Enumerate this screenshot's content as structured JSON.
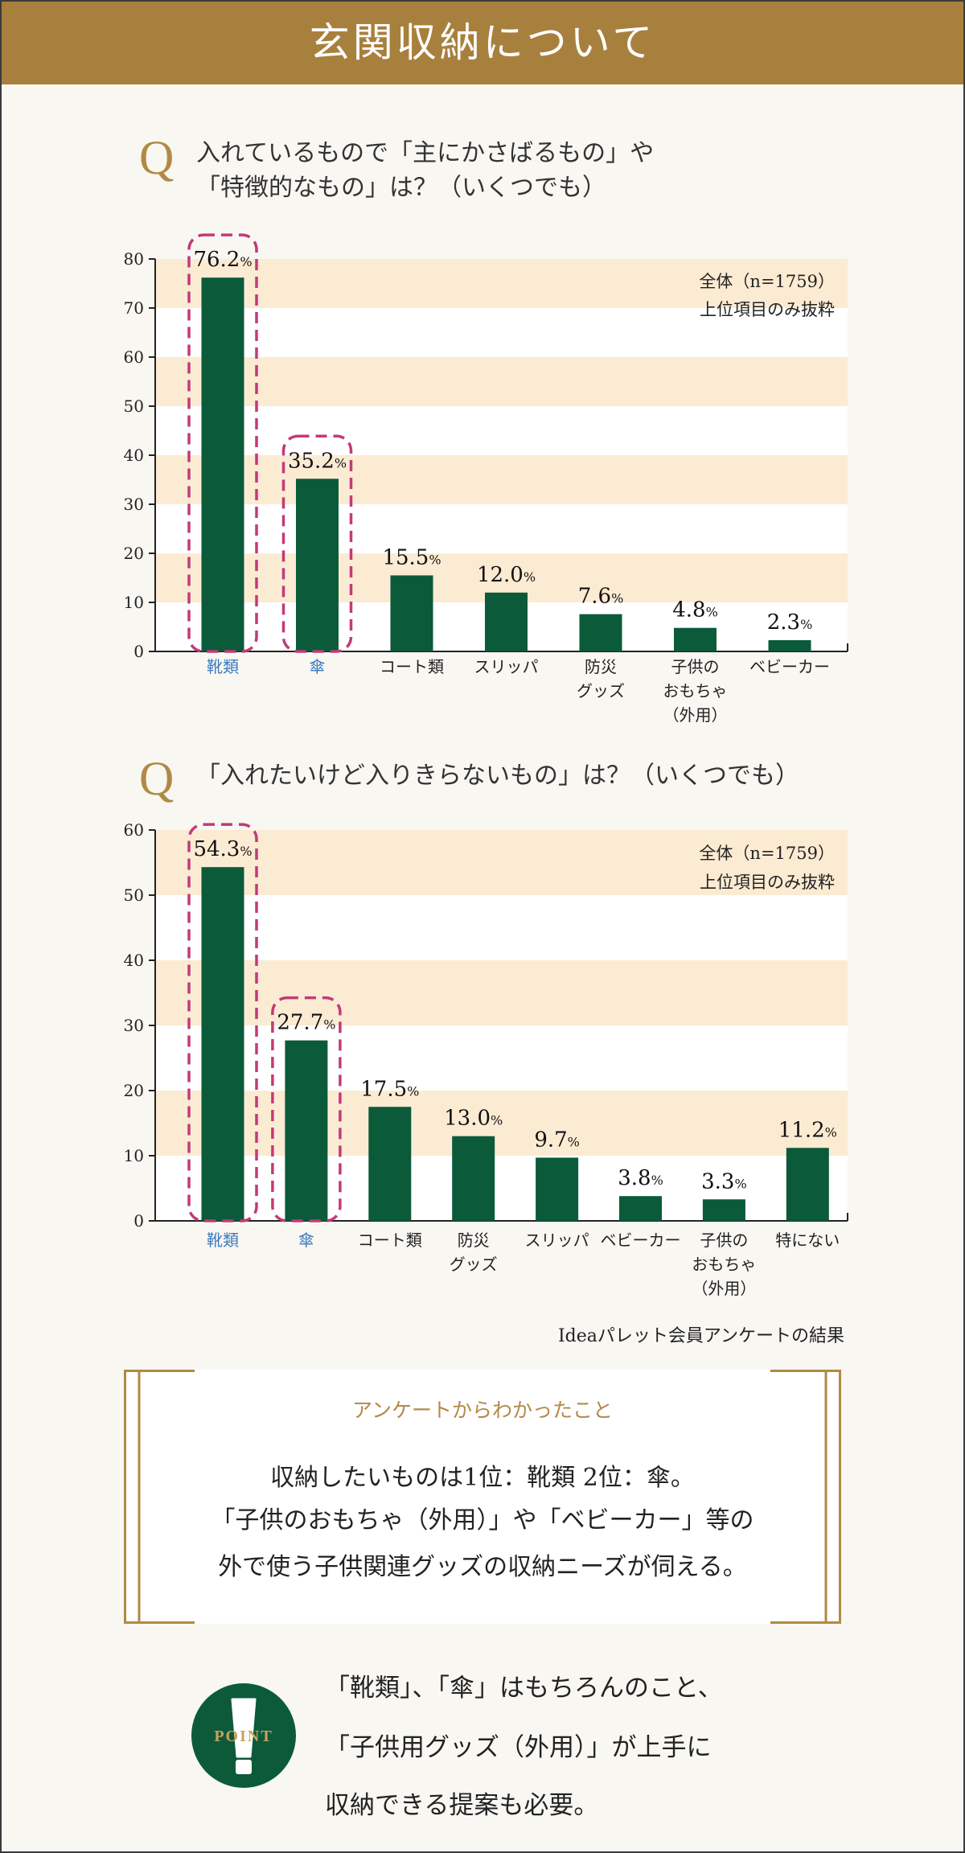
{
  "header": {
    "title": "玄関収納について"
  },
  "questions": [
    {
      "marker": "Q",
      "lines": [
        "入れているもので「主にかさばるもの」や",
        "「特徴的なもの」は？（いくつでも）"
      ]
    },
    {
      "marker": "Q",
      "lines": [
        "「入れたいけど入りきらないもの」は？（いくつでも）"
      ]
    }
  ],
  "colors": {
    "header": "#a8803d",
    "bar": "#0b5a3a",
    "band": "#fcebd3",
    "plot_background": "#ffffff",
    "highlight_label": "#3b7bbf",
    "highlight_box": "#c33a78",
    "gold": "#b08a45"
  },
  "chart_data": [
    {
      "type": "bar",
      "categories": [
        "靴類",
        "傘",
        "コート類",
        "スリッパ",
        "防災\nグッズ",
        "子供の\nおもちゃ\n（外用）",
        "ベビーカー"
      ],
      "values": [
        76.2,
        35.2,
        15.5,
        12.0,
        7.6,
        4.8,
        2.3
      ],
      "unit": "%",
      "ylim": [
        0,
        80
      ],
      "yticks": [
        0,
        10,
        20,
        30,
        40,
        50,
        60,
        70,
        80
      ],
      "highlight": [
        0,
        1
      ],
      "notes": [
        "全体（n=1759）",
        "上位項目のみ抜粋"
      ],
      "banded_background": true,
      "legend": false
    },
    {
      "type": "bar",
      "categories": [
        "靴類",
        "傘",
        "コート類",
        "防災\nグッズ",
        "スリッパ",
        "ベビーカー",
        "子供の\nおもちゃ\n（外用）",
        "特にない"
      ],
      "values": [
        54.3,
        27.7,
        17.5,
        13.0,
        9.7,
        3.8,
        3.3,
        11.2
      ],
      "unit": "%",
      "ylim": [
        0,
        60
      ],
      "yticks": [
        0,
        10,
        20,
        30,
        40,
        50,
        60
      ],
      "highlight": [
        0,
        1
      ],
      "notes": [
        "全体（n=1759）",
        "上位項目のみ抜粋"
      ],
      "banded_background": true,
      "legend": false
    }
  ],
  "source": "Ideaパレット会員アンケートの結果",
  "summary": {
    "title": "アンケートからわかったこと",
    "lines": [
      "収納したいものは1位：靴類 2位：傘。",
      "「子供のおもちゃ（外用）」や「ベビーカー」等の",
      "外で使う子供関連グッズの収納ニーズが伺える。"
    ]
  },
  "point": {
    "badge": "POINT",
    "icon": "exclamation-icon",
    "lines": [
      "「靴類」、「傘」はもちろんのこと、",
      "「子供用グッズ（外用）」が上手に",
      "収納できる提案も必要。"
    ]
  }
}
